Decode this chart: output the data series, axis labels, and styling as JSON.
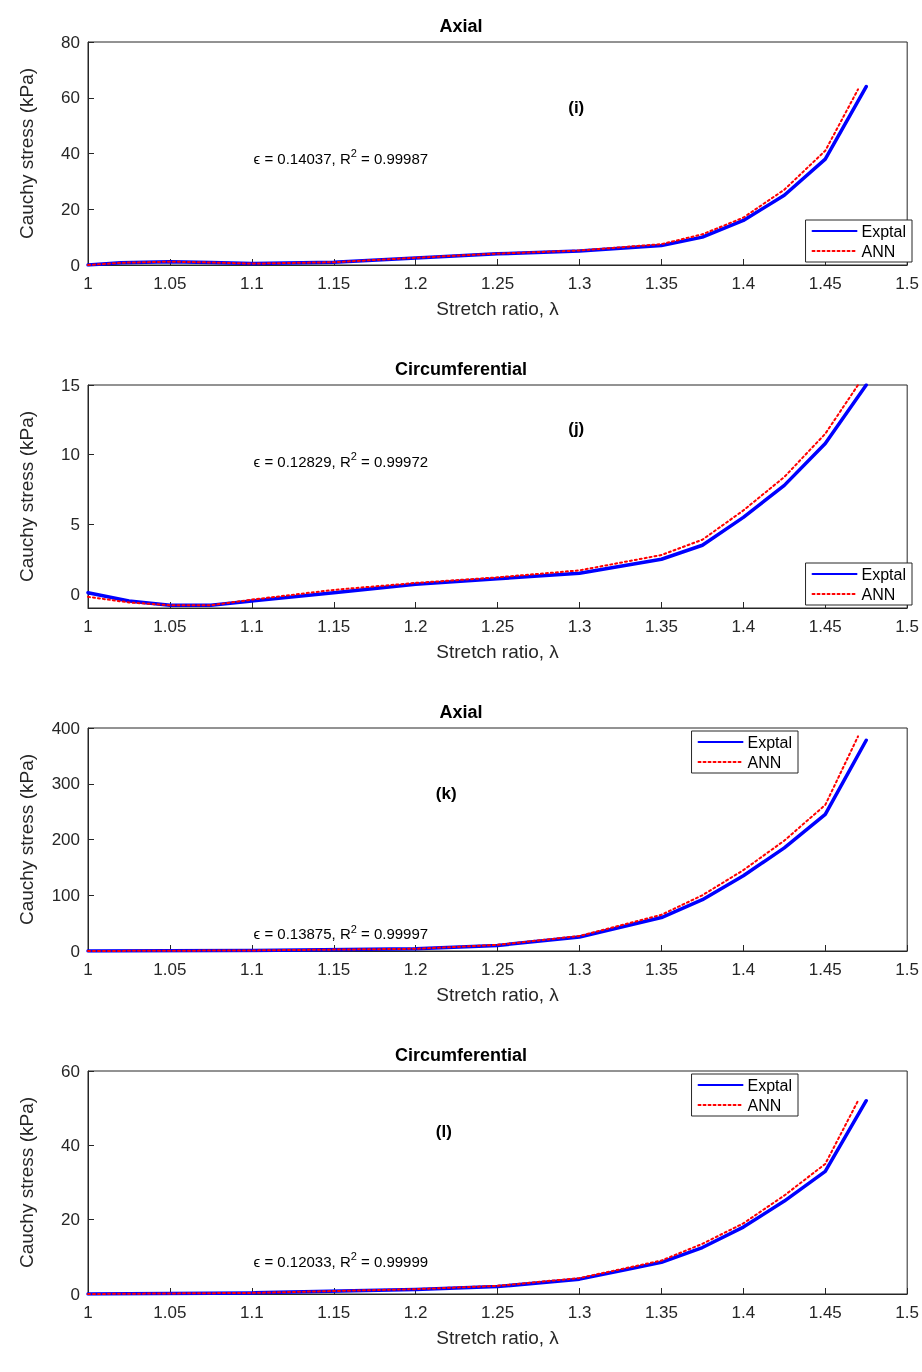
{
  "chart_data": [
    {
      "type": "line",
      "title": "Axial",
      "xlabel": "Stretch ratio, λ",
      "ylabel": "Cauchy stress (kPa)",
      "annotations": [
        "(i)",
        "ϵ = 0.14037, R$^{2}$ = 0.99987"
      ],
      "xlim": [
        1,
        1.5
      ],
      "xticks": [
        1,
        1.05,
        1.1,
        1.15,
        1.2,
        1.25,
        1.3,
        1.35,
        1.4,
        1.45,
        1.5
      ],
      "ylim": [
        0,
        80
      ],
      "yticks": [
        0,
        20,
        40,
        60,
        80
      ],
      "grid": false,
      "legend": "bottom right",
      "marker": "none",
      "series": [
        {
          "name": "Exptal",
          "color": "#0000ff",
          "line_style": "solid",
          "x": [
            1,
            1.02,
            1.05,
            1.075,
            1.1,
            1.15,
            1.2,
            1.25,
            1.3,
            1.35,
            1.375,
            1.4,
            1.425,
            1.45,
            1.475
          ],
          "values": [
            0,
            0.8,
            1.2,
            0.9,
            0.5,
            1,
            2.5,
            4,
            5,
            7,
            10,
            16,
            25,
            38,
            64
          ]
        },
        {
          "name": "ANN",
          "color": "#ff0000",
          "line_style": "dotted",
          "x": [
            1,
            1.02,
            1.05,
            1.075,
            1.1,
            1.15,
            1.2,
            1.25,
            1.3,
            1.35,
            1.375,
            1.4,
            1.425,
            1.45,
            1.47
          ],
          "values": [
            0,
            0.8,
            1.2,
            0.9,
            0.5,
            1,
            2.6,
            4.1,
            5.2,
            7.5,
            11,
            17,
            27,
            41,
            63
          ]
        }
      ]
    },
    {
      "type": "line",
      "title": "Circumferential",
      "xlabel": "Stretch ratio, λ",
      "ylabel": "Cauchy stress (kPa)",
      "annotations": [
        "(j)",
        "ϵ = 0.12829, R$^{2}$ = 0.99972"
      ],
      "xlim": [
        1,
        1.5
      ],
      "xticks": [
        1,
        1.05,
        1.1,
        1.15,
        1.2,
        1.25,
        1.3,
        1.35,
        1.4,
        1.45,
        1.5
      ],
      "ylim": [
        -1,
        15
      ],
      "yticks": [
        0,
        5,
        10,
        15
      ],
      "grid": false,
      "legend": "bottom right",
      "marker": "none",
      "series": [
        {
          "name": "Exptal",
          "color": "#0000ff",
          "line_style": "solid",
          "x": [
            1,
            1.025,
            1.05,
            1.075,
            1.1,
            1.15,
            1.2,
            1.25,
            1.3,
            1.35,
            1.375,
            1.4,
            1.425,
            1.45,
            1.475
          ],
          "values": [
            0.1,
            -0.5,
            -0.8,
            -0.8,
            -0.5,
            0.1,
            0.7,
            1.1,
            1.5,
            2.5,
            3.5,
            5.5,
            7.8,
            10.8,
            15
          ]
        },
        {
          "name": "ANN",
          "color": "#ff0000",
          "line_style": "dotted",
          "x": [
            1,
            1.025,
            1.05,
            1.075,
            1.1,
            1.15,
            1.2,
            1.25,
            1.3,
            1.35,
            1.375,
            1.4,
            1.425,
            1.45,
            1.47
          ],
          "values": [
            -0.2,
            -0.6,
            -0.8,
            -0.8,
            -0.4,
            0.3,
            0.8,
            1.2,
            1.7,
            2.8,
            3.9,
            6,
            8.4,
            11.5,
            15
          ]
        }
      ]
    },
    {
      "type": "line",
      "title": "Axial",
      "xlabel": "Stretch ratio, λ",
      "ylabel": "Cauchy stress (kPa)",
      "annotations": [
        "(k)",
        "ϵ = 0.13875, R$^{2}$ = 0.99997"
      ],
      "xlim": [
        1,
        1.5
      ],
      "xticks": [
        1,
        1.05,
        1.1,
        1.15,
        1.2,
        1.25,
        1.3,
        1.35,
        1.4,
        1.45,
        1.5
      ],
      "ylim": [
        0,
        400
      ],
      "yticks": [
        0,
        100,
        200,
        300,
        400
      ],
      "grid": false,
      "legend": "top right",
      "marker": "none",
      "series": [
        {
          "name": "Exptal",
          "color": "#0000ff",
          "line_style": "solid",
          "x": [
            1,
            1.1,
            1.2,
            1.25,
            1.3,
            1.35,
            1.375,
            1.4,
            1.425,
            1.45,
            1.475
          ],
          "values": [
            0,
            1,
            4,
            10,
            25,
            60,
            92,
            135,
            185,
            245,
            378
          ]
        },
        {
          "name": "ANN",
          "color": "#ff0000",
          "line_style": "dotted",
          "x": [
            1,
            1.1,
            1.2,
            1.25,
            1.3,
            1.35,
            1.375,
            1.4,
            1.425,
            1.45,
            1.47
          ],
          "values": [
            0,
            1,
            4,
            11,
            27,
            65,
            100,
            145,
            198,
            262,
            385
          ]
        }
      ]
    },
    {
      "type": "line",
      "title": "Circumferential",
      "xlabel": "Stretch ratio, λ",
      "ylabel": "Cauchy stress (kPa)",
      "annotations": [
        "(l)",
        "ϵ = 0.12033, R$^{2}$ = 0.99999"
      ],
      "xlim": [
        1,
        1.5
      ],
      "xticks": [
        1,
        1.05,
        1.1,
        1.15,
        1.2,
        1.25,
        1.3,
        1.35,
        1.4,
        1.45,
        1.5
      ],
      "ylim": [
        0,
        60
      ],
      "yticks": [
        0,
        20,
        40,
        60
      ],
      "grid": false,
      "legend": "top right",
      "marker": "none",
      "series": [
        {
          "name": "Exptal",
          "color": "#0000ff",
          "line_style": "solid",
          "x": [
            1,
            1.1,
            1.2,
            1.25,
            1.3,
            1.35,
            1.375,
            1.4,
            1.425,
            1.45,
            1.475
          ],
          "values": [
            0,
            0.3,
            1.2,
            2,
            4,
            8.5,
            12.5,
            18,
            25,
            33,
            52
          ]
        },
        {
          "name": "ANN",
          "color": "#ff0000",
          "line_style": "dotted",
          "x": [
            1,
            1.1,
            1.2,
            1.25,
            1.3,
            1.35,
            1.375,
            1.4,
            1.425,
            1.45,
            1.47
          ],
          "values": [
            0,
            0.3,
            1.3,
            2.2,
            4.3,
            9,
            13.5,
            19,
            26.5,
            35,
            52
          ]
        }
      ]
    }
  ]
}
